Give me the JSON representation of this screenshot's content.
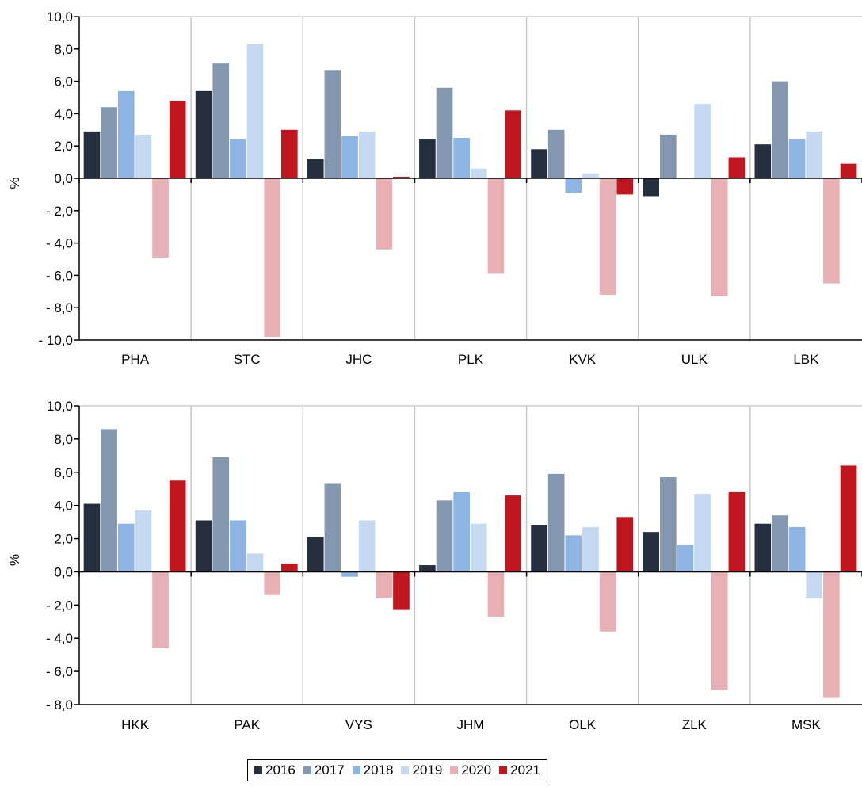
{
  "legend_entries": [
    "2016",
    "2017",
    "2018",
    "2019",
    "2020",
    "2021"
  ],
  "series_colors": [
    "#252e3c",
    "#8497b0",
    "#8eb4e3",
    "#c5d9f1",
    "#e6b0b4",
    "#c0161f"
  ],
  "chart_data": [
    {
      "type": "bar",
      "ylabel": "%",
      "ylim": [
        -10,
        10
      ],
      "yticks": [
        "10,0",
        "8,0",
        "6,0",
        "4,0",
        "2,0",
        "0,0",
        "- 2,0",
        "- 4,0",
        "- 6,0",
        "- 8,0",
        "- 10,0"
      ],
      "ytick_values": [
        10,
        8,
        6,
        4,
        2,
        0,
        -2,
        -4,
        -6,
        -8,
        -10
      ],
      "grid": "vertical between categories",
      "categories": [
        "PHA",
        "STC",
        "JHC",
        "PLK",
        "KVK",
        "ULK",
        "LBK"
      ],
      "series": [
        {
          "name": "2016",
          "values": [
            2.9,
            5.4,
            1.2,
            2.4,
            1.8,
            -1.1,
            2.1
          ]
        },
        {
          "name": "2017",
          "values": [
            4.4,
            7.1,
            6.7,
            5.6,
            3.0,
            2.7,
            6.0
          ]
        },
        {
          "name": "2018",
          "values": [
            5.4,
            2.4,
            2.6,
            2.5,
            -0.9,
            0.0,
            2.4
          ]
        },
        {
          "name": "2019",
          "values": [
            2.7,
            8.3,
            2.9,
            0.6,
            0.3,
            4.6,
            2.9
          ]
        },
        {
          "name": "2020",
          "values": [
            -4.9,
            -9.8,
            -4.4,
            -5.9,
            -7.2,
            -7.3,
            -6.5
          ]
        },
        {
          "name": "2021",
          "values": [
            4.8,
            3.0,
            0.1,
            4.2,
            -1.0,
            1.3,
            0.9
          ]
        }
      ]
    },
    {
      "type": "bar",
      "ylabel": "%",
      "ylim": [
        -8,
        10
      ],
      "yticks": [
        "10,0",
        "8,0",
        "6,0",
        "4,0",
        "2,0",
        "0,0",
        "- 2,0",
        "- 4,0",
        "- 6,0",
        "- 8,0"
      ],
      "ytick_values": [
        10,
        8,
        6,
        4,
        2,
        0,
        -2,
        -4,
        -6,
        -8
      ],
      "grid": "vertical between categories",
      "categories": [
        "HKK",
        "PAK",
        "VYS",
        "JHM",
        "OLK",
        "ZLK",
        "MSK"
      ],
      "series": [
        {
          "name": "2016",
          "values": [
            4.1,
            3.1,
            2.1,
            0.4,
            2.8,
            2.4,
            2.9
          ]
        },
        {
          "name": "2017",
          "values": [
            8.6,
            6.9,
            5.3,
            4.3,
            5.9,
            5.7,
            3.4
          ]
        },
        {
          "name": "2018",
          "values": [
            2.9,
            3.1,
            -0.3,
            4.8,
            2.2,
            1.6,
            2.7
          ]
        },
        {
          "name": "2019",
          "values": [
            3.7,
            1.1,
            3.1,
            2.9,
            2.7,
            4.7,
            -1.6
          ]
        },
        {
          "name": "2020",
          "values": [
            -4.6,
            -1.4,
            -1.6,
            -2.7,
            -3.6,
            -7.1,
            -7.6
          ]
        },
        {
          "name": "2021",
          "values": [
            5.5,
            0.5,
            -2.3,
            4.6,
            3.3,
            4.8,
            6.4
          ]
        }
      ]
    }
  ]
}
